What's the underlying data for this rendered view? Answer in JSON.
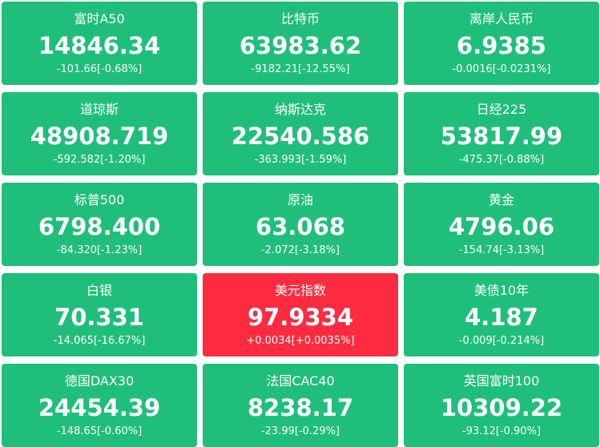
{
  "colors": {
    "down": "#1fbf7b",
    "up": "#fc2b3f"
  },
  "quotes": [
    {
      "name": "富时A50",
      "price": "14846.34",
      "change": "-101.66[-0.68%]",
      "trend": "down"
    },
    {
      "name": "比特币",
      "price": "63983.62",
      "change": "-9182.21[-12.55%]",
      "trend": "down"
    },
    {
      "name": "离岸人民币",
      "price": "6.9385",
      "change": "-0.0016[-0.0231%]",
      "trend": "down"
    },
    {
      "name": "道琼斯",
      "price": "48908.719",
      "change": "-592.582[-1.20%]",
      "trend": "down"
    },
    {
      "name": "纳斯达克",
      "price": "22540.586",
      "change": "-363.993[-1.59%]",
      "trend": "down"
    },
    {
      "name": "日经225",
      "price": "53817.99",
      "change": "-475.37[-0.88%]",
      "trend": "down"
    },
    {
      "name": "标普500",
      "price": "6798.400",
      "change": "-84.320[-1.23%]",
      "trend": "down"
    },
    {
      "name": "原油",
      "price": "63.068",
      "change": "-2.072[-3.18%]",
      "trend": "down"
    },
    {
      "name": "黄金",
      "price": "4796.06",
      "change": "-154.74[-3.13%]",
      "trend": "down"
    },
    {
      "name": "白银",
      "price": "70.331",
      "change": "-14.065[-16.67%]",
      "trend": "down"
    },
    {
      "name": "美元指数",
      "price": "97.9334",
      "change": "+0.0034[+0.0035%]",
      "trend": "up"
    },
    {
      "name": "美债10年",
      "price": "4.187",
      "change": "-0.009[-0.214%]",
      "trend": "down"
    },
    {
      "name": "德国DAX30",
      "price": "24454.39",
      "change": "-148.65[-0.60%]",
      "trend": "down"
    },
    {
      "name": "法国CAC40",
      "price": "8238.17",
      "change": "-23.99[-0.29%]",
      "trend": "down"
    },
    {
      "name": "英国富时100",
      "price": "10309.22",
      "change": "-93.12[-0.90%]",
      "trend": "down"
    }
  ]
}
